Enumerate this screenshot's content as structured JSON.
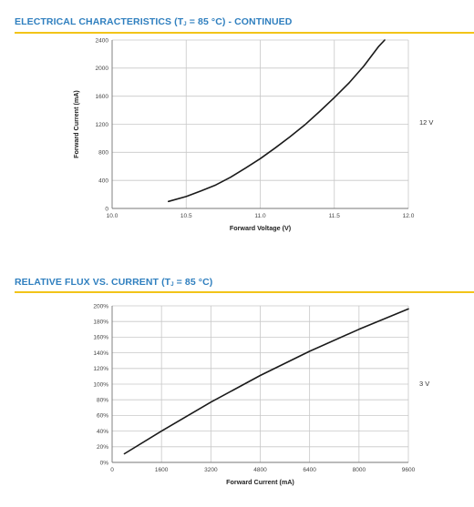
{
  "charts": {
    "top": {
      "title_pre": "ELECTRICAL CHARACTERISTICS (T",
      "title_sub": "J",
      "title_post": " = 85 °C) - CONTINUED",
      "side_label": "12 V"
    },
    "bottom": {
      "title_pre": "RELATIVE FLUX VS. CURRENT (T",
      "title_sub": "J",
      "title_post": " = 85 °C)",
      "side_label": "3 V"
    }
  },
  "colors": {
    "title": "#2f7fbf",
    "rule": "#f2c418",
    "grid": "#c8c8c8",
    "curve": "#1a1a1a"
  },
  "chart_data": [
    {
      "type": "line",
      "xlabel": "Forward Voltage (V)",
      "ylabel": "Forward Current (mA)",
      "xlim": [
        10.0,
        12.0
      ],
      "ylim": [
        0,
        2400
      ],
      "xticks": [
        "10.0",
        "10.5",
        "11.0",
        "11.5",
        "12.0"
      ],
      "yticks": [
        "0",
        "400",
        "800",
        "1200",
        "1600",
        "2000",
        "2400"
      ],
      "grid": true,
      "series": [
        {
          "x": [
            10.38,
            10.5,
            10.6,
            10.7,
            10.8,
            10.9,
            11.0,
            11.1,
            11.2,
            11.3,
            11.4,
            11.5,
            11.6,
            11.7,
            11.8,
            11.84
          ],
          "y": [
            100,
            170,
            250,
            335,
            445,
            575,
            710,
            860,
            1020,
            1190,
            1380,
            1580,
            1790,
            2030,
            2310,
            2400
          ]
        }
      ]
    },
    {
      "type": "line",
      "xlabel": "Forward Current (mA)",
      "ylabel": "",
      "xlim": [
        0,
        9600
      ],
      "ylim": [
        0,
        200
      ],
      "xticks": [
        "0",
        "1600",
        "3200",
        "4800",
        "6400",
        "8000",
        "9600"
      ],
      "yticks": [
        "0%",
        "20%",
        "40%",
        "60%",
        "80%",
        "100%",
        "120%",
        "140%",
        "160%",
        "180%",
        "200%"
      ],
      "grid": true,
      "series": [
        {
          "x": [
            400,
            1600,
            3200,
            4800,
            6400,
            8000,
            9600
          ],
          "y": [
            11,
            40,
            77,
            111,
            142,
            170,
            196
          ]
        }
      ]
    }
  ]
}
